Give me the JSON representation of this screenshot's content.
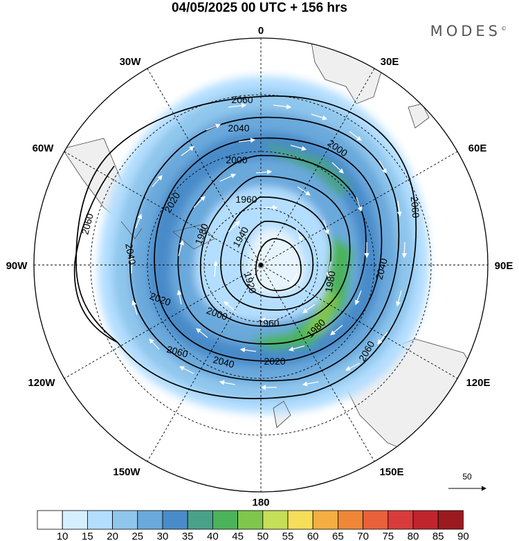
{
  "header": {
    "title": "04/05/2025  00 UTC  + 156 hrs",
    "brand": "MODES",
    "brand_mark": "©"
  },
  "map": {
    "projection": "polar stereographic (southern hemisphere)",
    "longitude_labels": {
      "top": "0",
      "top_right": "30E",
      "right_upper": "60E",
      "right": "90E",
      "right_lower": "120E",
      "bottom_right": "150E",
      "bottom": "180",
      "bottom_left": "150W",
      "left_lower": "120W",
      "left": "90W",
      "left_upper": "60W",
      "top_left": "30W"
    },
    "contour_labels": [
      "2060",
      "2040",
      "2000",
      "1960",
      "1940",
      "1920",
      "1980",
      "2020",
      "2060",
      "2040",
      "2020",
      "1960",
      "2000",
      "1980",
      "2040",
      "2060",
      "2020",
      "1980",
      "2060",
      "2040",
      "2000",
      "2060"
    ],
    "wind_reference": {
      "label": "50"
    },
    "colors": {
      "land": "#f0f0f0",
      "contour": "#000000",
      "vector": "#ffffff"
    }
  },
  "colorbar": {
    "ticks": [
      "10",
      "15",
      "20",
      "25",
      "30",
      "35",
      "40",
      "45",
      "50",
      "55",
      "60",
      "65",
      "70",
      "75",
      "80",
      "85",
      "90"
    ],
    "colors": [
      "#ffffff",
      "#d6efff",
      "#b4deff",
      "#8fc6ec",
      "#6aa9dc",
      "#4a8bc9",
      "#4aa18a",
      "#4cb35a",
      "#7fc64c",
      "#c5df58",
      "#f6de5a",
      "#f4ae42",
      "#ef8737",
      "#e8613a",
      "#d93b3b",
      "#c0242d",
      "#9a1a1f"
    ]
  }
}
